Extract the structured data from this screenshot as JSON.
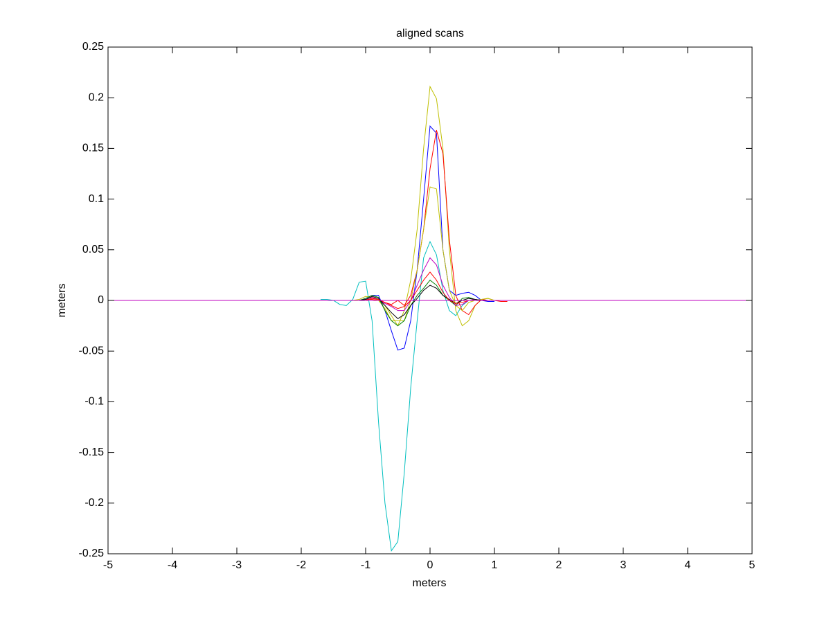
{
  "chart_data": {
    "type": "line",
    "title": "aligned scans",
    "x_label": "meters",
    "y_label": "meters",
    "x": [
      -5,
      -1.8,
      -1.7,
      -1.6,
      -1.5,
      -1.4,
      -1.3,
      -1.2,
      -1.1,
      -1.0,
      -0.9,
      -0.8,
      -0.7,
      -0.6,
      -0.5,
      -0.4,
      -0.3,
      -0.2,
      -0.1,
      0,
      0.1,
      0.2,
      0.3,
      0.4,
      0.5,
      0.6,
      0.7,
      0.8,
      0.9,
      1.0,
      1.1,
      1.2,
      1.3,
      5
    ],
    "xlim": [
      -5,
      5
    ],
    "xticks": [
      -5,
      -4,
      -3,
      -2,
      -1,
      0,
      1,
      2,
      3,
      4,
      5
    ],
    "ylim": [
      -0.25,
      0.25
    ],
    "yticks": [
      -0.25,
      -0.2,
      -0.15,
      -0.1,
      -0.05,
      0,
      0.05,
      0.1,
      0.15,
      0.2,
      0.25
    ],
    "series": [
      {
        "color": "#00bfbf",
        "values": [
          null,
          null,
          0.001,
          0.001,
          0,
          -0.004,
          -0.005,
          0.001,
          0.018,
          0.019,
          -0.02,
          -0.12,
          -0.2,
          -0.247,
          -0.238,
          -0.17,
          -0.086,
          -0.02,
          0.042,
          0.058,
          0.045,
          0.01,
          -0.01,
          -0.015,
          -0.005,
          0,
          0,
          0,
          null,
          null,
          null,
          null,
          null,
          null
        ]
      },
      {
        "color": "#bfbf00",
        "values": [
          null,
          null,
          null,
          null,
          null,
          null,
          null,
          null,
          0,
          0.001,
          0.003,
          0,
          -0.005,
          -0.015,
          -0.025,
          -0.01,
          0.02,
          0.07,
          0.15,
          0.211,
          0.199,
          0.15,
          0.05,
          -0.01,
          -0.025,
          -0.02,
          -0.005,
          0.001,
          0.002,
          0,
          null,
          null,
          null,
          null
        ]
      },
      {
        "color": "#0000ff",
        "values": [
          null,
          null,
          null,
          null,
          null,
          null,
          null,
          null,
          0,
          0.002,
          0.005,
          0.005,
          -0.01,
          -0.03,
          -0.049,
          -0.047,
          -0.02,
          0.03,
          0.1,
          0.172,
          0.165,
          0.05,
          0.01,
          0.005,
          0.007,
          0.008,
          0.005,
          0,
          -0.001,
          -0.001,
          null,
          null,
          null,
          null
        ]
      },
      {
        "color": "#ff0000",
        "values": [
          null,
          null,
          null,
          null,
          null,
          null,
          null,
          null,
          0,
          0.001,
          0.001,
          0,
          -0.002,
          -0.004,
          0,
          -0.005,
          0.005,
          0.03,
          0.07,
          0.13,
          0.168,
          0.145,
          0.06,
          0.005,
          -0.01,
          -0.014,
          -0.005,
          0.001,
          0,
          0,
          -0.001,
          -0.001,
          null,
          null
        ]
      },
      {
        "color": "#bfbf00",
        "values": [
          null,
          null,
          null,
          null,
          null,
          null,
          null,
          0,
          0.001,
          0.004,
          0.003,
          0,
          -0.008,
          -0.02,
          -0.02,
          -0.02,
          0,
          0.03,
          0.07,
          0.112,
          0.11,
          0.05,
          0.01,
          -0.005,
          -0.01,
          -0.002,
          0,
          0.001,
          0.002,
          0,
          null,
          null,
          null,
          null
        ]
      },
      {
        "color": "#008000",
        "values": [
          null,
          null,
          null,
          null,
          null,
          null,
          null,
          null,
          0,
          0.002,
          0.005,
          0.003,
          -0.01,
          -0.02,
          -0.025,
          -0.02,
          -0.005,
          0.005,
          0.012,
          0.02,
          0.015,
          0.005,
          0,
          -0.005,
          0.002,
          0.003,
          0.001,
          0,
          0,
          0,
          null,
          null,
          null,
          null
        ]
      },
      {
        "color": "#bf00bf",
        "values": [
          null,
          null,
          null,
          null,
          null,
          null,
          null,
          null,
          0,
          0.001,
          0.003,
          0.001,
          -0.003,
          -0.006,
          -0.01,
          -0.01,
          0,
          0.015,
          0.03,
          0.042,
          0.035,
          0.015,
          0.003,
          -0.005,
          -0.004,
          0,
          0.001,
          0,
          0,
          0,
          null,
          null,
          null,
          null
        ]
      },
      {
        "color": "#000000",
        "values": [
          null,
          null,
          null,
          null,
          null,
          null,
          null,
          null,
          0,
          0.001,
          0.004,
          0.002,
          -0.005,
          -0.012,
          -0.018,
          -0.014,
          -0.005,
          0.002,
          0.01,
          0.015,
          0.012,
          0.005,
          0.001,
          -0.003,
          0,
          0.002,
          0.001,
          0,
          0,
          0,
          null,
          null,
          null,
          null
        ]
      },
      {
        "color": "#ff0000",
        "values": [
          null,
          null,
          null,
          null,
          null,
          null,
          null,
          null,
          0,
          0,
          0.002,
          0.001,
          -0.002,
          -0.005,
          -0.008,
          -0.006,
          0,
          0.01,
          0.02,
          0.028,
          0.02,
          0.008,
          0,
          -0.003,
          -0.002,
          0,
          0,
          0,
          0,
          0,
          null,
          null,
          null,
          null
        ]
      },
      {
        "color": "#bf00bf",
        "values": [
          0,
          0,
          0,
          0,
          0,
          0,
          0,
          0,
          0,
          0,
          0,
          0,
          0,
          0,
          0,
          0,
          0,
          0,
          0,
          0,
          0,
          0,
          0,
          0,
          0,
          0,
          0,
          0,
          0,
          0,
          0,
          0,
          0,
          0
        ]
      }
    ]
  }
}
